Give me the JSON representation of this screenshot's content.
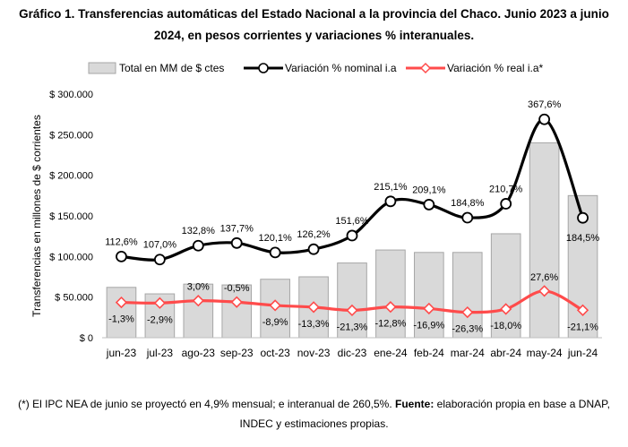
{
  "title": {
    "line1": "Gráfico 1. Transferencias automáticas del Estado Nacional a la provincia del Chaco. Junio 2023 a junio",
    "line2": "2024, en pesos corrientes y variaciones % interanuales."
  },
  "footnote": {
    "text1": "(*) El IPC NEA de junio se proyectó en 4,9% mensual; e interanual de 260,5%. ",
    "bold": "Fuente:",
    "text2": " elaboración propia en base a DNAP,",
    "line2": "INDEC y estimaciones propias."
  },
  "chart_data": {
    "type": "bar",
    "categories": [
      "jun-23",
      "jul-23",
      "ago-23",
      "sep-23",
      "oct-23",
      "nov-23",
      "dic-23",
      "ene-24",
      "feb-24",
      "mar-24",
      "abr-24",
      "may-24",
      "jun-24"
    ],
    "ylabel": "Transferencias en millones de $ corrientes",
    "ylim": [
      0,
      300000
    ],
    "yticks": [
      0,
      50000,
      100000,
      150000,
      200000,
      250000,
      300000
    ],
    "ytick_labels": [
      "$ 0",
      "$ 50.000",
      "$ 100.000",
      "$ 150.000",
      "$ 200.000",
      "$ 250.000",
      "$ 300.000"
    ],
    "grid": false,
    "legend_position": "top",
    "series": [
      {
        "name": "Total en MM de $ ctes",
        "kind": "bar",
        "color": "#d9d9d9",
        "values": [
          62000,
          54000,
          66000,
          65000,
          72000,
          75000,
          92000,
          108000,
          105000,
          105000,
          128000,
          240000,
          175000
        ]
      },
      {
        "name": "Variación % nominal i.a",
        "kind": "line",
        "color": "#000000",
        "pct_values": [
          112.6,
          107.0,
          132.8,
          137.7,
          120.1,
          126.2,
          151.6,
          215.1,
          209.1,
          184.8,
          210.7,
          367.6,
          184.5
        ],
        "labels": [
          "112,6%",
          "107,0%",
          "132,8%",
          "137,7%",
          "120,1%",
          "126,2%",
          "151,6%",
          "215,1%",
          "209,1%",
          "184,8%",
          "210,7%",
          "367,6%",
          "184,5%"
        ]
      },
      {
        "name": "Variación % real i.a*",
        "kind": "line",
        "color": "#ff4b4b",
        "pct_values": [
          -1.3,
          -2.9,
          3.0,
          -0.5,
          -8.9,
          -13.3,
          -21.3,
          -12.8,
          -16.9,
          -26.3,
          -18.0,
          27.6,
          -21.1
        ],
        "labels": [
          "-1,3%",
          "-2,9%",
          "3,0%",
          "-0,5%",
          "-8,9%",
          "-13,3%",
          "-21,3%",
          "-12,8%",
          "-16,9%",
          "-26,3%",
          "-18,0%",
          "27,6%",
          "-21,1%"
        ]
      }
    ]
  }
}
